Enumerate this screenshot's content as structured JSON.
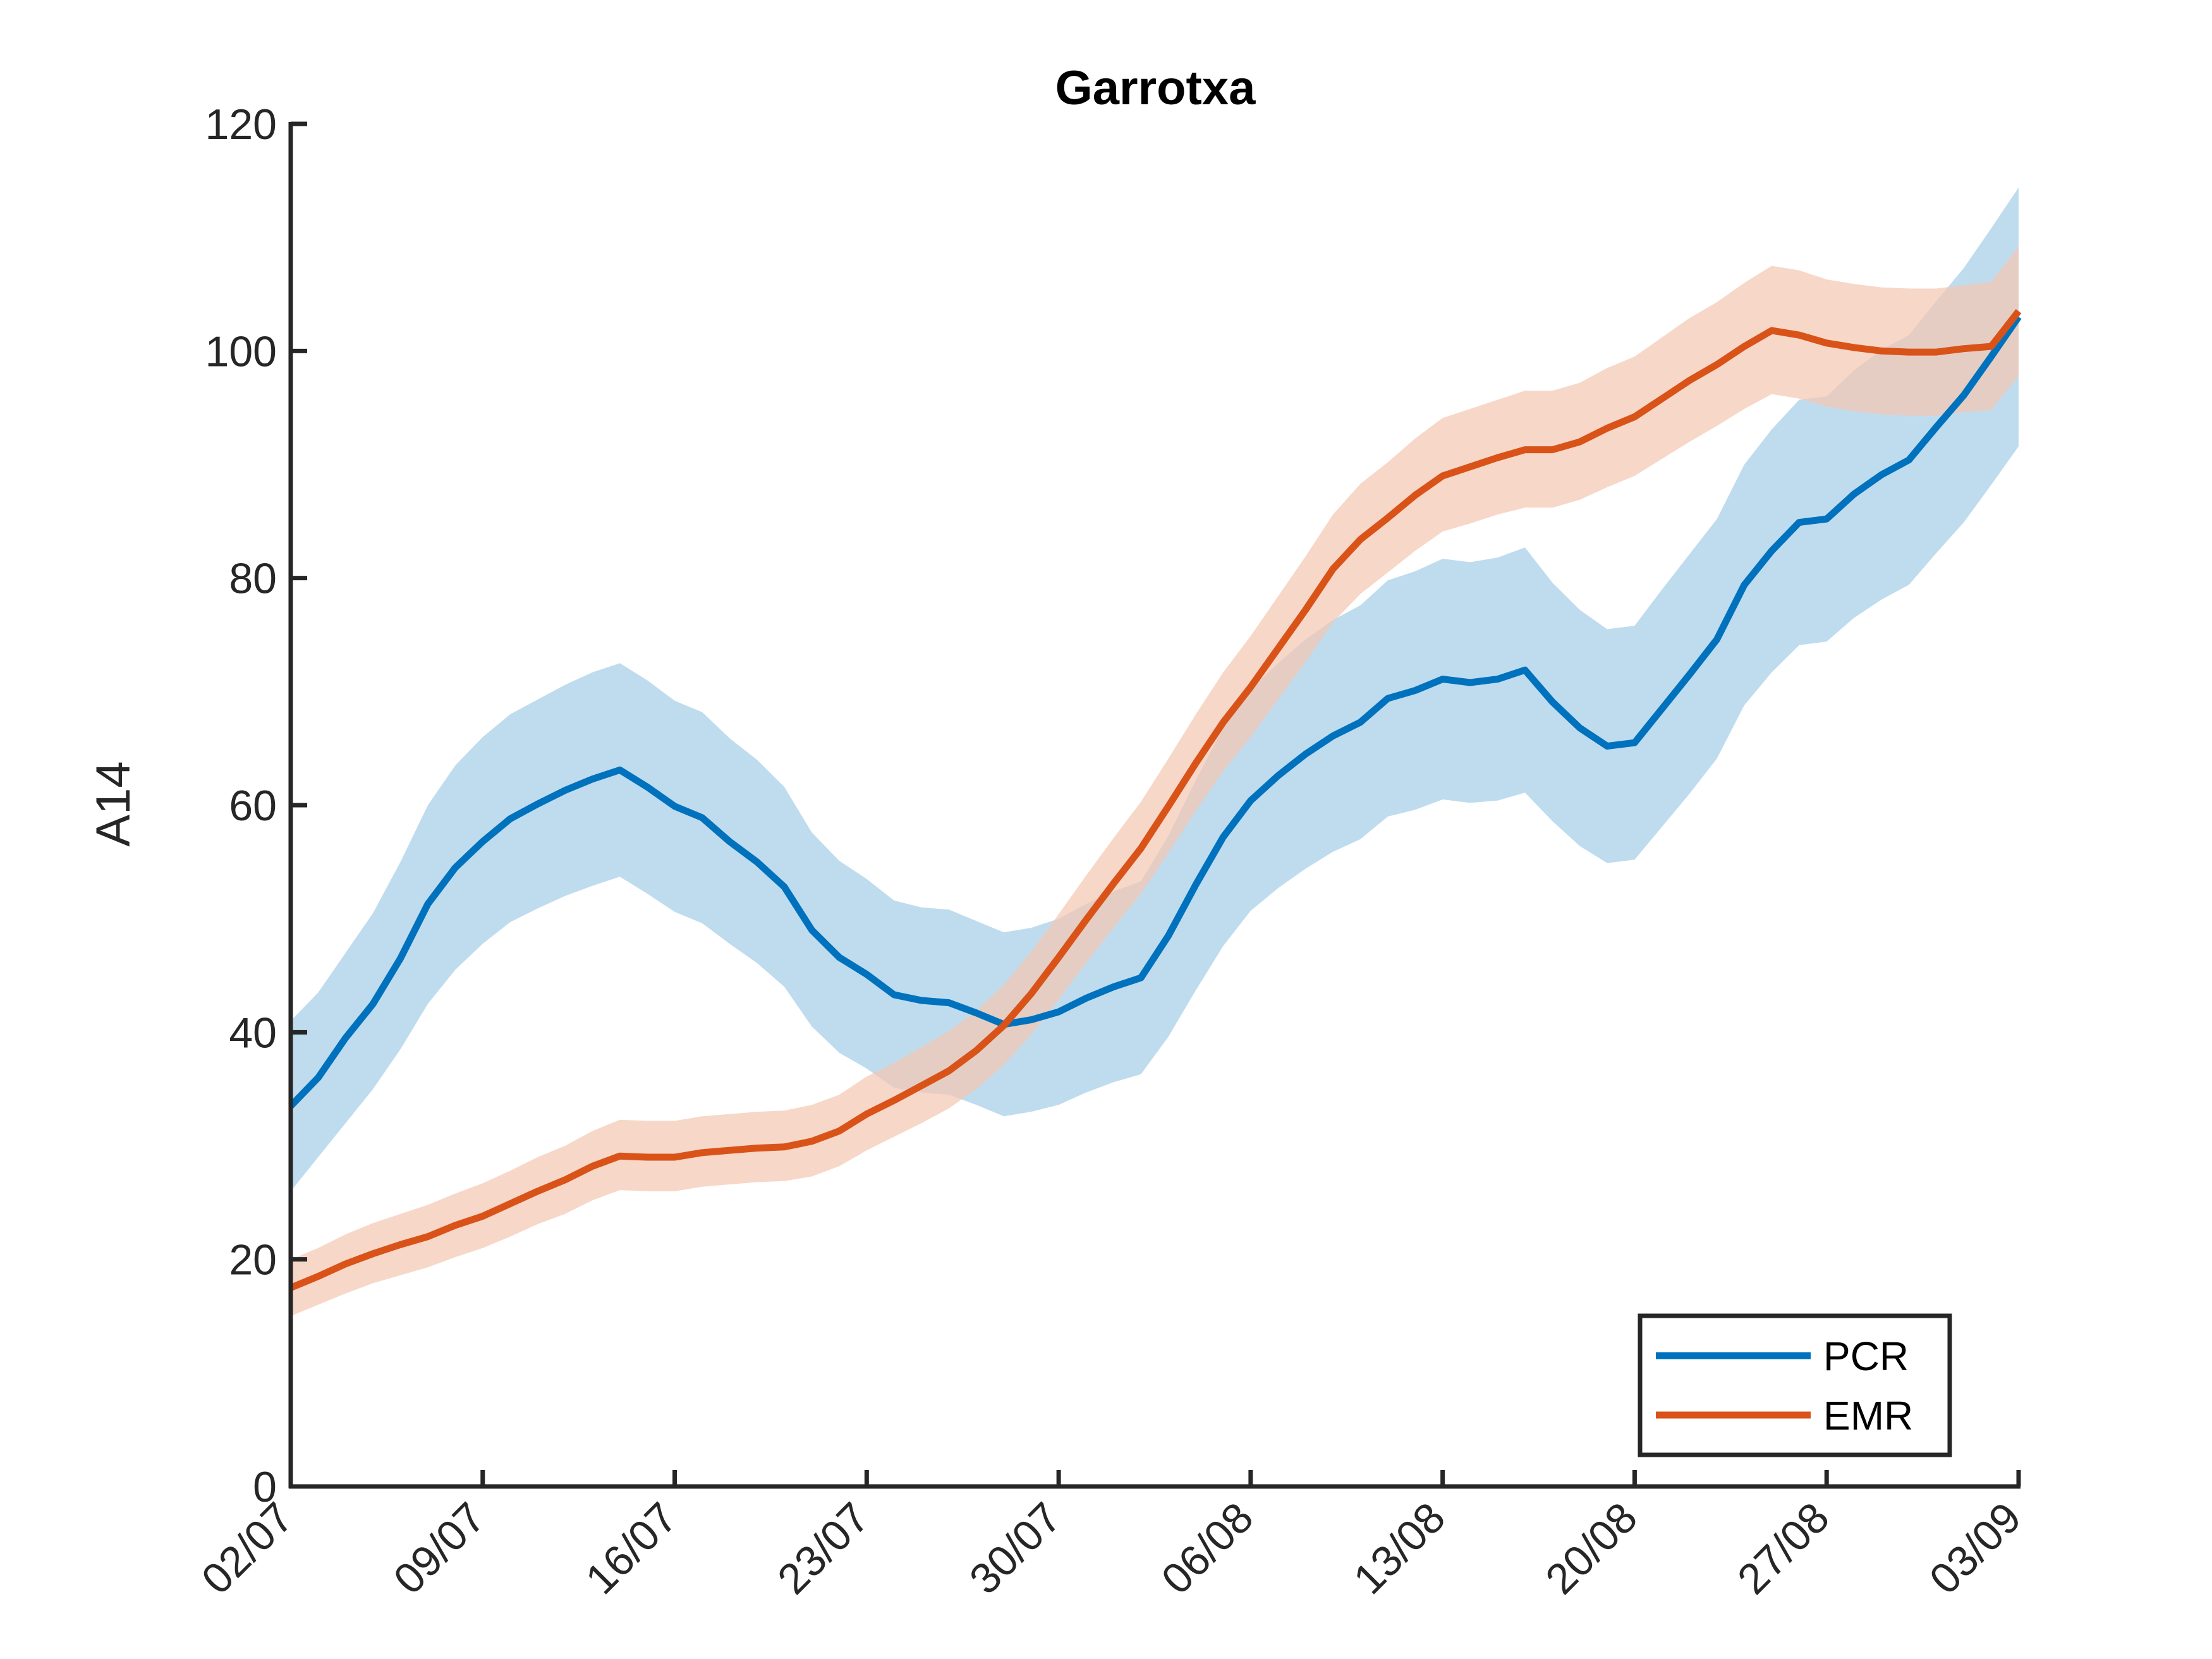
{
  "chart_data": {
    "type": "line",
    "title": "Garrotxa",
    "xlabel": "",
    "ylabel": "A14",
    "ylim": [
      0,
      120
    ],
    "yticks": [
      0,
      20,
      40,
      60,
      80,
      100,
      120
    ],
    "xlim": [
      "02/07",
      "03/09"
    ],
    "xticks": [
      "02/07",
      "09/07",
      "16/07",
      "23/07",
      "30/07",
      "06/08",
      "13/08",
      "20/08",
      "27/08",
      "03/09"
    ],
    "x_start_date": "2020-07-02",
    "x_step_days": 1,
    "grid": false,
    "legend": {
      "position": "bottom-right",
      "entries": [
        "PCR",
        "EMR"
      ]
    },
    "series": [
      {
        "name": "PCR",
        "color": "#0072bd",
        "band_color": "#a6cfe9",
        "values": [
          33.5,
          36,
          39.5,
          42.5,
          46.5,
          51.3,
          54.5,
          56.8,
          58.8,
          60.1,
          61.3,
          62.3,
          63.1,
          61.6,
          59.9,
          58.9,
          56.8,
          55,
          52.8,
          49,
          46.6,
          45.1,
          43.3,
          42.8,
          42.6,
          41.7,
          40.7,
          41.1,
          41.8,
          43,
          44,
          44.8,
          48.5,
          53,
          57.2,
          60.4,
          62.6,
          64.5,
          66.1,
          67.3,
          69.4,
          70.1,
          71.1,
          70.8,
          71.1,
          71.9,
          69.1,
          66.8,
          65.2,
          65.5,
          68.5,
          71.5,
          74.6,
          79.4,
          82.4,
          84.9,
          85.2,
          87.4,
          89.1,
          90.4,
          93.3,
          96.1,
          99.5,
          103
        ],
        "lower": [
          26,
          29,
          32,
          35,
          38.5,
          42.5,
          45.5,
          47.8,
          49.7,
          50.9,
          52,
          52.9,
          53.7,
          52.2,
          50.6,
          49.6,
          47.8,
          46.1,
          44,
          40.5,
          38.2,
          36.8,
          35.1,
          34.7,
          34.5,
          33.6,
          32.6,
          33,
          33.6,
          34.7,
          35.6,
          36.3,
          39.6,
          43.7,
          47.6,
          50.7,
          52.7,
          54.4,
          55.9,
          57,
          59,
          59.6,
          60.5,
          60.2,
          60.4,
          61.1,
          58.6,
          56.4,
          54.9,
          55.2,
          58.1,
          61,
          64.1,
          68.8,
          71.7,
          74.1,
          74.4,
          76.5,
          78.1,
          79.4,
          82.2,
          84.9,
          88.2,
          91.6
        ],
        "upper": [
          41,
          43.5,
          47,
          50.5,
          55,
          60,
          63.5,
          66,
          68,
          69.3,
          70.6,
          71.7,
          72.5,
          71,
          69.2,
          68.2,
          65.9,
          64,
          61.6,
          57.6,
          55.1,
          53.5,
          51.6,
          51,
          50.8,
          49.8,
          48.8,
          49.2,
          50,
          51.3,
          52.4,
          53.3,
          57.3,
          62.2,
          66.8,
          70.2,
          72.5,
          74.6,
          76.3,
          77.6,
          79.8,
          80.6,
          81.7,
          81.4,
          81.8,
          82.7,
          79.6,
          77.2,
          75.5,
          75.8,
          79,
          82.1,
          85.2,
          90,
          93.1,
          95.7,
          96,
          98.3,
          100.1,
          101.4,
          104.4,
          107.3,
          110.8,
          114.4
        ]
      },
      {
        "name": "EMR",
        "color": "#d95319",
        "band_color": "#f4c7b3",
        "values": [
          17.5,
          18.5,
          19.6,
          20.5,
          21.3,
          22,
          23,
          23.8,
          24.9,
          26,
          27,
          28.2,
          29.1,
          29,
          29,
          29.4,
          29.6,
          29.8,
          29.9,
          30.4,
          31.3,
          32.8,
          34,
          35.3,
          36.6,
          38.4,
          40.6,
          43.4,
          46.6,
          49.9,
          53.1,
          56.2,
          59.9,
          63.7,
          67.3,
          70.4,
          73.8,
          77.2,
          80.8,
          83.4,
          85.3,
          87.3,
          89,
          89.8,
          90.6,
          91.3,
          91.3,
          92,
          93.2,
          94.2,
          95.8,
          97.4,
          98.8,
          100.4,
          101.8,
          101.4,
          100.7,
          100.3,
          100,
          99.9,
          99.9,
          100.2,
          100.4,
          103.5
        ],
        "lower": [
          15,
          16,
          17,
          17.9,
          18.6,
          19.3,
          20.2,
          21,
          22,
          23.1,
          24,
          25.2,
          26.1,
          26,
          26,
          26.4,
          26.6,
          26.8,
          26.9,
          27.3,
          28.2,
          29.6,
          30.8,
          32,
          33.3,
          35,
          37.1,
          39.8,
          42.9,
          46.1,
          49.2,
          52.2,
          55.8,
          59.5,
          63,
          66,
          69.3,
          72.6,
          76.1,
          78.6,
          80.5,
          82.4,
          84.1,
          84.8,
          85.6,
          86.2,
          86.2,
          86.9,
          88,
          89,
          90.5,
          92,
          93.4,
          94.9,
          96.2,
          95.8,
          95.1,
          94.7,
          94.4,
          94.3,
          94.3,
          94.6,
          94.8,
          97.8
        ],
        "upper": [
          20,
          21,
          22.2,
          23.2,
          24,
          24.8,
          25.8,
          26.7,
          27.8,
          29,
          30,
          31.3,
          32.3,
          32.2,
          32.2,
          32.6,
          32.8,
          33,
          33.1,
          33.6,
          34.5,
          36.1,
          37.3,
          38.7,
          40.1,
          41.9,
          44.2,
          47.1,
          50.4,
          53.8,
          57.1,
          60.3,
          64.1,
          68,
          71.7,
          74.9,
          78.4,
          81.9,
          85.6,
          88.3,
          90.2,
          92.3,
          94.1,
          94.9,
          95.7,
          96.5,
          96.5,
          97.2,
          98.5,
          99.5,
          101.2,
          102.9,
          104.3,
          106,
          107.5,
          107.1,
          106.3,
          105.9,
          105.6,
          105.5,
          105.5,
          105.8,
          106.1,
          109.2
        ]
      }
    ]
  }
}
